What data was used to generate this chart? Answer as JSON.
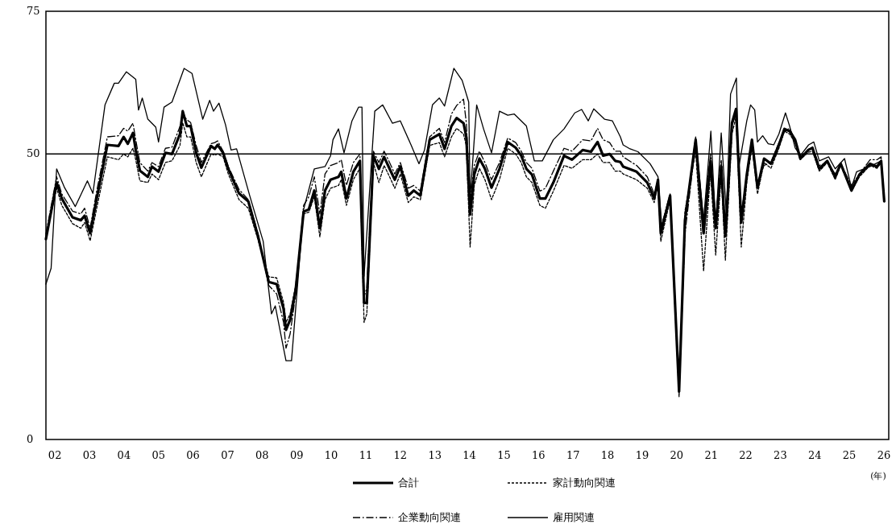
{
  "chart_data": {
    "type": "line",
    "xlabel": "(年)",
    "xlim": [
      2001.74,
      2026.14
    ],
    "ylim": [
      0,
      75
    ],
    "xticks": [
      {
        "value": 2002,
        "label": "02"
      },
      {
        "value": 2003,
        "label": "03"
      },
      {
        "value": 2004,
        "label": "04"
      },
      {
        "value": 2005,
        "label": "05"
      },
      {
        "value": 2006,
        "label": "06"
      },
      {
        "value": 2007,
        "label": "07"
      },
      {
        "value": 2008,
        "label": "08"
      },
      {
        "value": 2009,
        "label": "09"
      },
      {
        "value": 2010,
        "label": "10"
      },
      {
        "value": 2011,
        "label": "11"
      },
      {
        "value": 2012,
        "label": "12"
      },
      {
        "value": 2013,
        "label": "13"
      },
      {
        "value": 2014,
        "label": "14"
      },
      {
        "value": 2015,
        "label": "15"
      },
      {
        "value": 2016,
        "label": "16"
      },
      {
        "value": 2017,
        "label": "17"
      },
      {
        "value": 2018,
        "label": "18"
      },
      {
        "value": 2019,
        "label": "19"
      },
      {
        "value": 2020,
        "label": "20"
      },
      {
        "value": 2021,
        "label": "21"
      },
      {
        "value": 2022,
        "label": "22"
      },
      {
        "value": 2023,
        "label": "23"
      },
      {
        "value": 2024,
        "label": "24"
      },
      {
        "value": 2025,
        "label": "25"
      },
      {
        "value": 2026,
        "label": "26"
      }
    ],
    "yticks": [
      0,
      50,
      75
    ],
    "grid": false,
    "legend": "bottom",
    "marker": "none",
    "ref_lines": [
      {
        "axis": "y",
        "value": 50,
        "color": "#000000"
      }
    ],
    "x": [
      2001.74,
      2002.05,
      2002.2,
      2002.51,
      2002.75,
      2002.86,
      2003.02,
      2003.21,
      2003.52,
      2003.84,
      2003.99,
      2004.11,
      2004.26,
      2004.34,
      2004.46,
      2004.69,
      2004.81,
      2005.0,
      2005.2,
      2005.39,
      2005.62,
      2005.7,
      2005.82,
      2005.93,
      2006.09,
      2006.24,
      2006.52,
      2006.63,
      2006.71,
      2006.87,
      2007.02,
      2007.33,
      2007.6,
      2007.88,
      2008.19,
      2008.42,
      2008.62,
      2008.69,
      2008.81,
      2008.97,
      2009.2,
      2009.35,
      2009.51,
      2009.67,
      2009.82,
      2009.98,
      2010.21,
      2010.29,
      2010.44,
      2010.64,
      2010.83,
      2010.95,
      2011.03,
      2011.22,
      2011.38,
      2011.53,
      2011.69,
      2011.84,
      2012.0,
      2012.23,
      2012.39,
      2012.58,
      2012.85,
      2013.13,
      2013.28,
      2013.48,
      2013.63,
      2013.83,
      2013.91,
      2014.02,
      2014.14,
      2014.29,
      2014.45,
      2014.64,
      2014.87,
      2015.11,
      2015.34,
      2015.5,
      2015.65,
      2015.81,
      2016.04,
      2016.2,
      2016.43,
      2016.74,
      2016.97,
      2017.28,
      2017.52,
      2017.71,
      2017.87,
      2018.06,
      2018.22,
      2018.37,
      2018.45,
      2018.84,
      2019.15,
      2019.35,
      2019.46,
      2019.54,
      2019.81,
      2020.07,
      2020.24,
      2020.55,
      2020.78,
      2020.98,
      2021.13,
      2021.29,
      2021.41,
      2021.6,
      2021.72,
      2021.87,
      2022.03,
      2022.18,
      2022.34,
      2022.53,
      2022.73,
      2022.96,
      2023.12,
      2023.27,
      2023.43,
      2023.58,
      2023.81,
      2023.93,
      2024.13,
      2024.36,
      2024.59,
      2024.75,
      2025.06,
      2025.29,
      2025.6,
      2025.8,
      2025.92,
      2026.01
    ],
    "series": [
      {
        "name": "合計",
        "color": "#000000",
        "line_style": "solid",
        "values": [
          35.1,
          45.0,
          42.2,
          38.9,
          38.4,
          39.2,
          36.1,
          42.2,
          51.6,
          51.4,
          53.0,
          51.8,
          53.7,
          50.7,
          47.1,
          46.0,
          47.8,
          46.9,
          50.2,
          50.0,
          53.5,
          57.5,
          54.9,
          54.9,
          50.2,
          47.6,
          51.4,
          50.9,
          51.6,
          50.2,
          47.4,
          43.1,
          41.7,
          35.6,
          27.6,
          27.2,
          22.9,
          19.2,
          21.0,
          26.2,
          39.9,
          40.3,
          43.6,
          37.0,
          43.6,
          45.5,
          46.0,
          46.9,
          42.2,
          46.9,
          48.8,
          23.9,
          23.9,
          49.7,
          47.4,
          49.5,
          47.4,
          45.5,
          47.8,
          42.7,
          43.6,
          42.7,
          52.5,
          53.5,
          50.9,
          54.9,
          56.3,
          55.4,
          53.0,
          39.4,
          46.4,
          49.2,
          47.4,
          44.1,
          47.4,
          52.1,
          51.1,
          49.7,
          47.4,
          46.4,
          42.2,
          42.2,
          45.0,
          49.7,
          49.0,
          50.7,
          50.4,
          52.1,
          49.7,
          50.0,
          48.8,
          48.6,
          47.8,
          46.9,
          45.0,
          42.2,
          45.5,
          36.1,
          42.7,
          8.4,
          38.4,
          52.5,
          36.1,
          48.8,
          37.0,
          47.8,
          35.6,
          55.4,
          57.9,
          38.0,
          46.4,
          52.5,
          44.1,
          49.2,
          48.3,
          51.6,
          54.4,
          54.0,
          52.5,
          49.2,
          50.7,
          51.1,
          47.4,
          48.8,
          46.0,
          48.3,
          43.6,
          46.4,
          48.3,
          47.8,
          48.8,
          41.7
        ]
      },
      {
        "name": "家計動向関連",
        "color": "#000000",
        "line_style": "dashed",
        "values": [
          35.5,
          44.0,
          41.0,
          37.8,
          37.0,
          38.0,
          34.8,
          40.5,
          49.5,
          49.0,
          50.0,
          49.5,
          51.0,
          49.0,
          45.3,
          45.0,
          46.5,
          45.5,
          48.5,
          48.8,
          51.5,
          55.5,
          53.0,
          53.0,
          48.5,
          46.0,
          50.0,
          49.8,
          50.0,
          49.5,
          46.5,
          42.0,
          40.5,
          35.0,
          28.5,
          28.3,
          24.0,
          20.5,
          22.0,
          27.0,
          39.5,
          39.8,
          42.5,
          35.5,
          42.0,
          44.0,
          44.5,
          45.5,
          41.0,
          45.5,
          47.5,
          20.5,
          22.0,
          48.5,
          45.0,
          48.0,
          46.0,
          44.0,
          46.5,
          41.5,
          42.5,
          42.0,
          51.5,
          52.0,
          49.5,
          53.0,
          54.5,
          53.5,
          51.5,
          33.7,
          44.5,
          47.5,
          45.5,
          42.0,
          45.5,
          51.0,
          50.0,
          48.5,
          46.0,
          45.0,
          41.0,
          40.5,
          43.5,
          48.0,
          47.5,
          49.0,
          49.0,
          50.0,
          48.5,
          48.5,
          47.0,
          47.0,
          46.5,
          45.5,
          44.0,
          41.5,
          45.0,
          34.7,
          42.0,
          7.5,
          40.0,
          50.5,
          29.5,
          47.0,
          32.3,
          46.5,
          31.4,
          53.5,
          56.5,
          33.7,
          45.0,
          51.5,
          43.0,
          48.5,
          47.5,
          51.0,
          54.0,
          53.5,
          52.0,
          49.0,
          50.3,
          50.5,
          47.0,
          48.5,
          45.5,
          48.0,
          43.5,
          46.0,
          48.0,
          47.5,
          48.5,
          42.0
        ]
      },
      {
        "name": "企業動向関連",
        "color": "#000000",
        "line_style": "dashdot",
        "values": [
          36.0,
          46.0,
          43.0,
          40.0,
          39.5,
          40.5,
          37.0,
          43.5,
          53.0,
          53.2,
          54.5,
          54.0,
          55.4,
          52.5,
          48.5,
          47.0,
          48.5,
          47.8,
          51.0,
          51.2,
          54.8,
          57.0,
          56.0,
          55.5,
          51.5,
          48.5,
          51.8,
          52.0,
          52.3,
          50.5,
          47.8,
          43.8,
          42.0,
          36.0,
          27.0,
          25.5,
          20.5,
          16.0,
          18.5,
          25.5,
          41.0,
          42.5,
          46.0,
          39.5,
          46.5,
          48.0,
          48.5,
          49.0,
          44.5,
          48.5,
          50.0,
          25.0,
          26.5,
          50.5,
          48.5,
          50.5,
          48.5,
          46.5,
          48.5,
          44.0,
          44.5,
          43.5,
          53.0,
          54.5,
          52.0,
          57.0,
          58.5,
          59.6,
          55.5,
          41.5,
          48.0,
          50.5,
          48.5,
          45.5,
          48.5,
          52.8,
          52.0,
          50.5,
          48.5,
          47.5,
          43.5,
          44.0,
          47.0,
          51.0,
          50.5,
          52.5,
          52.3,
          54.5,
          52.5,
          52.0,
          50.5,
          50.5,
          49.5,
          48.0,
          46.0,
          43.0,
          45.5,
          37.0,
          43.0,
          9.0,
          36.0,
          52.0,
          38.0,
          50.0,
          38.5,
          49.0,
          37.0,
          55.0,
          57.0,
          39.5,
          46.0,
          51.0,
          45.0,
          48.0,
          48.5,
          52.0,
          54.0,
          54.5,
          52.5,
          49.5,
          50.8,
          51.0,
          48.0,
          48.5,
          46.5,
          48.3,
          44.5,
          46.5,
          49.0,
          49.0,
          49.5,
          42.0
        ]
      },
      {
        "name": "雇用関連",
        "color": "#000000",
        "line_style": "solid",
        "x": [
          2001.74,
          2001.89,
          2002.05,
          2002.28,
          2002.59,
          2002.94,
          2003.1,
          2003.45,
          2003.72,
          2003.84,
          2004.07,
          2004.34,
          2004.42,
          2004.53,
          2004.69,
          2004.92,
          2005.0,
          2005.16,
          2005.39,
          2005.74,
          2005.97,
          2006.28,
          2006.48,
          2006.59,
          2006.75,
          2006.94,
          2007.1,
          2007.26,
          2007.64,
          2008.03,
          2008.27,
          2008.38,
          2008.69,
          2008.85,
          2009.2,
          2009.51,
          2009.82,
          2009.98,
          2010.05,
          2010.21,
          2010.37,
          2010.6,
          2010.79,
          2010.89,
          2010.95,
          2011.26,
          2011.49,
          2011.77,
          2012.0,
          2012.31,
          2012.54,
          2012.7,
          2012.93,
          2013.13,
          2013.28,
          2013.55,
          2013.79,
          2013.98,
          2014.02,
          2014.21,
          2014.41,
          2014.64,
          2014.87,
          2015.11,
          2015.3,
          2015.65,
          2015.88,
          2016.11,
          2016.43,
          2016.74,
          2017.05,
          2017.25,
          2017.44,
          2017.6,
          2017.91,
          2018.14,
          2018.37,
          2018.45,
          2018.65,
          2018.88,
          2019.23,
          2019.46,
          2019.58,
          2019.81,
          2020.07,
          2020.24,
          2020.55,
          2020.78,
          2020.99,
          2021.13,
          2021.29,
          2021.44,
          2021.56,
          2021.73,
          2021.79,
          2022.03,
          2022.14,
          2022.26,
          2022.34,
          2022.49,
          2022.65,
          2022.81,
          2022.96,
          2023.15,
          2023.27,
          2023.43,
          2023.58,
          2023.82,
          2023.97,
          2024.13,
          2024.4,
          2024.59,
          2024.86,
          2025.06,
          2025.21,
          2025.6,
          2025.92,
          2026.01
        ],
        "values": [
          27.2,
          30.0,
          47.4,
          44.1,
          40.8,
          45.3,
          43.1,
          58.6,
          62.4,
          62.4,
          64.4,
          63.1,
          57.7,
          59.8,
          56.1,
          54.7,
          52.1,
          58.2,
          59.1,
          65.0,
          64.1,
          56.1,
          59.4,
          57.5,
          58.9,
          55.1,
          50.7,
          50.9,
          42.7,
          34.7,
          22.0,
          23.4,
          13.8,
          13.8,
          40.3,
          47.4,
          47.8,
          49.7,
          52.5,
          54.4,
          50.2,
          55.8,
          58.2,
          58.2,
          28.6,
          57.5,
          58.6,
          55.4,
          55.8,
          51.6,
          48.3,
          50.7,
          58.6,
          59.8,
          58.4,
          65.0,
          62.9,
          59.1,
          42.2,
          58.6,
          54.4,
          50.2,
          57.5,
          56.8,
          57.0,
          54.9,
          48.8,
          48.8,
          52.5,
          54.4,
          57.2,
          57.8,
          55.8,
          57.9,
          56.1,
          55.8,
          53.0,
          51.6,
          50.9,
          50.4,
          48.3,
          46.0,
          36.6,
          42.9,
          8.8,
          38.0,
          53.0,
          38.4,
          54.0,
          37.5,
          53.7,
          39.4,
          60.5,
          63.3,
          47.4,
          55.8,
          58.6,
          57.7,
          52.1,
          53.2,
          51.8,
          51.6,
          53.5,
          57.2,
          54.9,
          51.1,
          49.7,
          51.6,
          52.1,
          48.8,
          49.5,
          47.4,
          49.2,
          44.1,
          46.9,
          47.8,
          48.8,
          42.2
        ]
      }
    ]
  }
}
